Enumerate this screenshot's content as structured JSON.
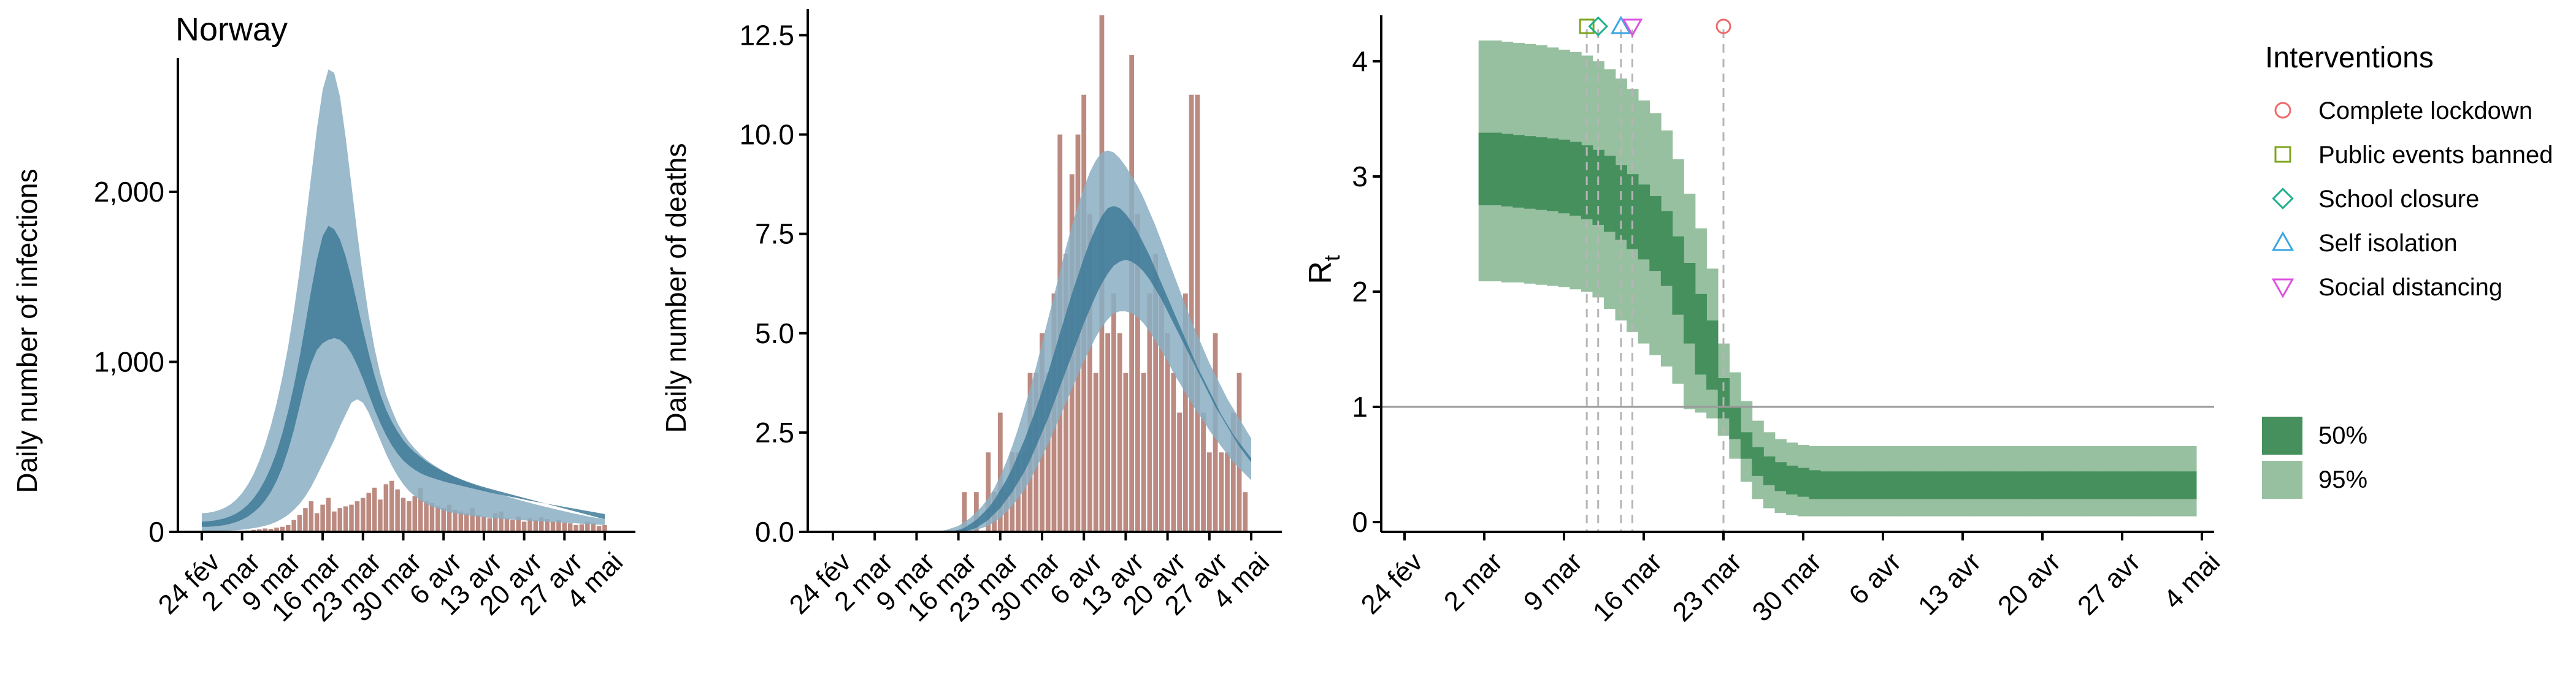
{
  "colors": {
    "bar_observed": "#bc8a80",
    "band_outer": "#8aaec3",
    "band_inner": "#3f7a98",
    "rt_95": "#96c0a0",
    "rt_50": "#45905d",
    "lockdown": "#f06a6a",
    "public_events": "#7da51e",
    "school_closure": "#1fb08c",
    "self_isolation": "#3aa7e2",
    "social_distancing": "#dd52e0"
  },
  "chart_data": [
    {
      "type": "bar",
      "title": "Norway",
      "xlabel": "",
      "ylabel": "Daily number of infections",
      "x_ticks": [
        "24 fév",
        "2 mar",
        "9 mar",
        "16 mar",
        "23 mar",
        "30 mar",
        "6 avr",
        "13 avr",
        "20 avr",
        "27 avr",
        "4 mai"
      ],
      "xlim_days": [
        0,
        70
      ],
      "y_ticks": [
        "0",
        "1,000",
        "2,000"
      ],
      "y_tick_values": [
        0,
        1000,
        2000
      ],
      "ylim": [
        0,
        2750
      ],
      "observed": {
        "start_day": 0,
        "values": [
          1,
          1,
          0,
          3,
          2,
          1,
          4,
          3,
          8,
          12,
          15,
          20,
          18,
          25,
          30,
          40,
          70,
          100,
          140,
          180,
          110,
          160,
          200,
          120,
          140,
          150,
          160,
          180,
          200,
          230,
          260,
          190,
          280,
          300,
          250,
          200,
          180,
          210,
          260,
          180,
          170,
          150,
          140,
          160,
          130,
          120,
          110,
          140,
          100,
          90,
          80,
          110,
          120,
          80,
          70,
          90,
          60,
          80,
          70,
          85,
          75,
          60,
          70,
          55,
          50,
          40,
          45,
          60,
          50,
          35,
          40
        ]
      },
      "model": {
        "start_day": 0,
        "outer_low": [
          2,
          3,
          4,
          5,
          6,
          8,
          10,
          13,
          17,
          22,
          28,
          36,
          46,
          60,
          78,
          100,
          130,
          165,
          210,
          265,
          330,
          400,
          470,
          540,
          620,
          690,
          760,
          780,
          760,
          700,
          620,
          540,
          460,
          390,
          330,
          280,
          240,
          210,
          185,
          165,
          150,
          137,
          126,
          117,
          109,
          103,
          98,
          94,
          90,
          86,
          83,
          80,
          77,
          74,
          72,
          70,
          68,
          66,
          64,
          62,
          60,
          58,
          56,
          54,
          52,
          50,
          48,
          46,
          44,
          42,
          40
        ],
        "inner_low": [
          30,
          30,
          32,
          35,
          40,
          48,
          58,
          72,
          90,
          115,
          145,
          185,
          235,
          300,
          380,
          480,
          600,
          740,
          880,
          990,
          1070,
          1110,
          1130,
          1140,
          1130,
          1100,
          1050,
          980,
          900,
          810,
          720,
          640,
          570,
          510,
          460,
          420,
          390,
          365,
          345,
          330,
          318,
          307,
          297,
          288,
          280,
          272,
          264,
          256,
          248,
          240,
          232,
          225,
          218,
          211,
          204,
          197,
          190,
          183,
          177,
          171,
          165,
          159,
          153,
          147,
          141,
          135,
          129,
          123,
          117,
          111,
          105
        ],
        "inner_high": [
          60,
          62,
          66,
          72,
          80,
          92,
          108,
          130,
          160,
          198,
          246,
          306,
          380,
          470,
          580,
          710,
          860,
          1030,
          1220,
          1420,
          1600,
          1740,
          1800,
          1780,
          1720,
          1620,
          1490,
          1340,
          1190,
          1050,
          920,
          810,
          720,
          650,
          590,
          540,
          500,
          468,
          440,
          415,
          393,
          373,
          355,
          339,
          324,
          310,
          297,
          285,
          274,
          264,
          254,
          245,
          236,
          227,
          218,
          209,
          200,
          191,
          182,
          173,
          164,
          155,
          146,
          137,
          128,
          119,
          110,
          101,
          92,
          83,
          75
        ],
        "outer_high": [
          110,
          112,
          118,
          128,
          142,
          162,
          190,
          228,
          278,
          340,
          418,
          512,
          624,
          756,
          910,
          1090,
          1300,
          1540,
          1810,
          2090,
          2370,
          2600,
          2720,
          2700,
          2560,
          2320,
          2040,
          1760,
          1500,
          1270,
          1080,
          930,
          810,
          720,
          640,
          580,
          530,
          490,
          455,
          425,
          400,
          378,
          358,
          340,
          323,
          307,
          292,
          278,
          265,
          253,
          241,
          230,
          219,
          209,
          199,
          189,
          180,
          171,
          162,
          153,
          145,
          137,
          129,
          121,
          113,
          106,
          99,
          92,
          86,
          80,
          75
        ]
      }
    },
    {
      "type": "bar",
      "xlabel": "",
      "ylabel": "Daily number of deaths",
      "x_ticks": [
        "24 fév",
        "2 mar",
        "9 mar",
        "16 mar",
        "23 mar",
        "30 mar",
        "6 avr",
        "13 avr",
        "20 avr",
        "27 avr",
        "4 mai"
      ],
      "xlim_days": [
        0,
        70
      ],
      "y_ticks": [
        "0.0",
        "2.5",
        "5.0",
        "7.5",
        "10.0",
        "12.5"
      ],
      "y_tick_values": [
        0,
        2.5,
        5,
        7.5,
        10,
        12.5
      ],
      "ylim": [
        0,
        13
      ],
      "observed": {
        "start_day": 0,
        "values": [
          0,
          0,
          0,
          0,
          0,
          0,
          0,
          0,
          0,
          0,
          0,
          0,
          0,
          0,
          0,
          0,
          0,
          0,
          0,
          0,
          0,
          0,
          1,
          0,
          1,
          0,
          2,
          1,
          3,
          1,
          2,
          2,
          2,
          4,
          4,
          5,
          4,
          6,
          10,
          7,
          9,
          10,
          11,
          8,
          4,
          13,
          5,
          6,
          5,
          4,
          12,
          8,
          4,
          6,
          7,
          6,
          5,
          4,
          3,
          6,
          11,
          11,
          3,
          2,
          5,
          2,
          2,
          3,
          4,
          1,
          0
        ]
      },
      "model": {
        "start_day": 0,
        "outer_low": [
          0,
          0,
          0,
          0,
          0,
          0,
          0,
          0,
          0,
          0,
          0,
          0,
          0,
          0,
          0,
          0,
          0,
          0,
          0,
          0,
          0,
          0,
          0,
          0.02,
          0.05,
          0.1,
          0.15,
          0.25,
          0.35,
          0.5,
          0.65,
          0.85,
          1.05,
          1.3,
          1.6,
          1.9,
          2.2,
          2.55,
          2.9,
          3.25,
          3.6,
          3.95,
          4.3,
          4.6,
          4.9,
          5.15,
          5.35,
          5.5,
          5.55,
          5.55,
          5.5,
          5.4,
          5.25,
          5.05,
          4.8,
          4.55,
          4.3,
          4.0,
          3.75,
          3.5,
          3.25,
          3.0,
          2.8,
          2.55,
          2.35,
          2.15,
          1.95,
          1.75,
          1.6,
          1.45,
          1.3
        ],
        "inner_low": [
          0,
          0,
          0,
          0,
          0,
          0,
          0,
          0,
          0,
          0,
          0,
          0,
          0,
          0,
          0,
          0,
          0,
          0,
          0,
          0,
          0,
          0,
          0.02,
          0.05,
          0.1,
          0.2,
          0.3,
          0.45,
          0.6,
          0.8,
          1.0,
          1.25,
          1.5,
          1.8,
          2.15,
          2.5,
          2.85,
          3.25,
          3.65,
          4.05,
          4.45,
          4.85,
          5.25,
          5.6,
          5.95,
          6.25,
          6.5,
          6.7,
          6.8,
          6.85,
          6.8,
          6.7,
          6.55,
          6.35,
          6.1,
          5.85,
          5.55,
          5.25,
          4.95,
          4.65,
          4.35,
          4.05,
          3.75,
          3.45,
          3.15,
          2.9,
          2.65,
          2.4,
          2.15,
          1.95,
          1.75
        ],
        "inner_high": [
          0,
          0,
          0,
          0,
          0,
          0,
          0,
          0,
          0,
          0,
          0,
          0,
          0,
          0,
          0,
          0,
          0,
          0,
          0,
          0,
          0.02,
          0.05,
          0.1,
          0.2,
          0.3,
          0.45,
          0.6,
          0.8,
          1.05,
          1.3,
          1.6,
          1.95,
          2.3,
          2.7,
          3.1,
          3.55,
          4.0,
          4.5,
          5.0,
          5.5,
          6.0,
          6.45,
          6.9,
          7.3,
          7.65,
          7.95,
          8.15,
          8.2,
          8.15,
          8.0,
          7.8,
          7.55,
          7.25,
          6.95,
          6.6,
          6.25,
          5.9,
          5.55,
          5.2,
          4.85,
          4.5,
          4.15,
          3.85,
          3.55,
          3.25,
          2.95,
          2.7,
          2.45,
          2.25,
          2.05,
          1.85
        ],
        "outer_high": [
          0,
          0,
          0,
          0,
          0,
          0,
          0,
          0,
          0,
          0,
          0,
          0,
          0,
          0,
          0,
          0,
          0,
          0,
          0.02,
          0.05,
          0.1,
          0.15,
          0.25,
          0.35,
          0.5,
          0.65,
          0.85,
          1.1,
          1.4,
          1.75,
          2.15,
          2.6,
          3.1,
          3.6,
          4.15,
          4.75,
          5.35,
          5.95,
          6.55,
          7.15,
          7.7,
          8.2,
          8.65,
          9.05,
          9.35,
          9.55,
          9.6,
          9.55,
          9.4,
          9.2,
          8.95,
          8.7,
          8.4,
          8.05,
          7.7,
          7.3,
          6.9,
          6.5,
          6.1,
          5.7,
          5.3,
          4.95,
          4.6,
          4.25,
          3.95,
          3.65,
          3.35,
          3.1,
          2.85,
          2.6,
          2.35
        ]
      }
    },
    {
      "type": "area",
      "xlabel": "",
      "ylabel": "R",
      "ylabel_subscript": "t",
      "x_ticks": [
        "24 fév",
        "2 mar",
        "9 mar",
        "16 mar",
        "23 mar",
        "30 mar",
        "6 avr",
        "13 avr",
        "20 avr",
        "27 avr",
        "4 mai"
      ],
      "xlim_days": [
        0,
        70
      ],
      "y_ticks": [
        "0",
        "1",
        "2",
        "3",
        "4"
      ],
      "y_tick_values": [
        0,
        1,
        2,
        3,
        4
      ],
      "ylim": [
        0,
        4.35
      ],
      "reference_line_y": 1,
      "rt": {
        "start_day": 7,
        "low95": [
          2.09,
          2.09,
          2.08,
          2.08,
          2.07,
          2.06,
          2.05,
          2.04,
          2.02,
          2.0,
          1.95,
          1.85,
          1.75,
          1.65,
          1.55,
          1.45,
          1.35,
          1.2,
          0.98,
          0.95,
          0.9,
          0.75,
          0.55,
          0.35,
          0.2,
          0.12,
          0.08,
          0.06,
          0.05,
          0.05,
          0.05,
          0.05,
          0.05,
          0.05,
          0.05,
          0.05,
          0.05,
          0.05,
          0.05,
          0.05,
          0.05,
          0.05,
          0.05,
          0.05,
          0.05,
          0.05,
          0.05,
          0.05,
          0.05,
          0.05,
          0.05,
          0.05,
          0.05,
          0.05,
          0.05,
          0.05,
          0.05,
          0.05,
          0.05,
          0.05,
          0.05,
          0.05,
          0.05
        ],
        "low50": [
          2.75,
          2.75,
          2.74,
          2.73,
          2.72,
          2.71,
          2.7,
          2.68,
          2.66,
          2.63,
          2.58,
          2.52,
          2.45,
          2.37,
          2.28,
          2.18,
          2.05,
          1.8,
          1.55,
          1.28,
          1.15,
          0.9,
          0.72,
          0.55,
          0.4,
          0.32,
          0.27,
          0.24,
          0.22,
          0.2,
          0.2,
          0.2,
          0.2,
          0.2,
          0.2,
          0.2,
          0.2,
          0.2,
          0.2,
          0.2,
          0.2,
          0.2,
          0.2,
          0.2,
          0.2,
          0.2,
          0.2,
          0.2,
          0.2,
          0.2,
          0.2,
          0.2,
          0.2,
          0.2,
          0.2,
          0.2,
          0.2,
          0.2,
          0.2,
          0.2,
          0.2,
          0.2,
          0.2
        ],
        "high50": [
          3.38,
          3.38,
          3.37,
          3.36,
          3.35,
          3.34,
          3.33,
          3.32,
          3.3,
          3.27,
          3.23,
          3.18,
          3.1,
          3.02,
          2.93,
          2.83,
          2.7,
          2.48,
          2.25,
          1.98,
          1.75,
          1.25,
          1.0,
          0.78,
          0.65,
          0.57,
          0.52,
          0.49,
          0.47,
          0.45,
          0.44,
          0.44,
          0.44,
          0.44,
          0.44,
          0.44,
          0.44,
          0.44,
          0.44,
          0.44,
          0.44,
          0.44,
          0.44,
          0.44,
          0.44,
          0.44,
          0.44,
          0.44,
          0.44,
          0.44,
          0.44,
          0.44,
          0.44,
          0.44,
          0.44,
          0.44,
          0.44,
          0.44,
          0.44,
          0.44,
          0.44,
          0.44,
          0.44
        ],
        "high95": [
          4.18,
          4.18,
          4.17,
          4.16,
          4.15,
          4.14,
          4.12,
          4.1,
          4.08,
          4.05,
          4.0,
          3.93,
          3.85,
          3.76,
          3.66,
          3.55,
          3.4,
          3.15,
          2.85,
          2.55,
          2.2,
          1.55,
          1.3,
          1.05,
          0.88,
          0.78,
          0.72,
          0.69,
          0.67,
          0.66,
          0.66,
          0.66,
          0.66,
          0.66,
          0.66,
          0.66,
          0.66,
          0.66,
          0.66,
          0.66,
          0.66,
          0.66,
          0.66,
          0.66,
          0.66,
          0.66,
          0.66,
          0.66,
          0.66,
          0.66,
          0.66,
          0.66,
          0.66,
          0.66,
          0.66,
          0.66,
          0.66,
          0.66,
          0.66,
          0.66,
          0.66,
          0.66,
          0.66
        ]
      },
      "interventions": [
        {
          "name": "Complete lockdown",
          "day": 28,
          "shape": "circle",
          "color_key": "lockdown"
        },
        {
          "name": "Public events banned",
          "day": 16,
          "shape": "square",
          "color_key": "public_events"
        },
        {
          "name": "School closure",
          "day": 17,
          "shape": "diamond",
          "color_key": "school_closure"
        },
        {
          "name": "Self isolation",
          "day": 19,
          "shape": "triangle-up",
          "color_key": "self_isolation"
        },
        {
          "name": "Social distancing",
          "day": 20,
          "shape": "triangle-down",
          "color_key": "social_distancing"
        }
      ],
      "legend": {
        "title": "Interventions",
        "items": [
          "Complete lockdown",
          "Public events banned",
          "School closure",
          "Self isolation",
          "Social distancing"
        ],
        "fill_items": [
          {
            "label": "50%",
            "color_key": "rt_50"
          },
          {
            "label": "95%",
            "color_key": "rt_95"
          }
        ]
      }
    }
  ]
}
